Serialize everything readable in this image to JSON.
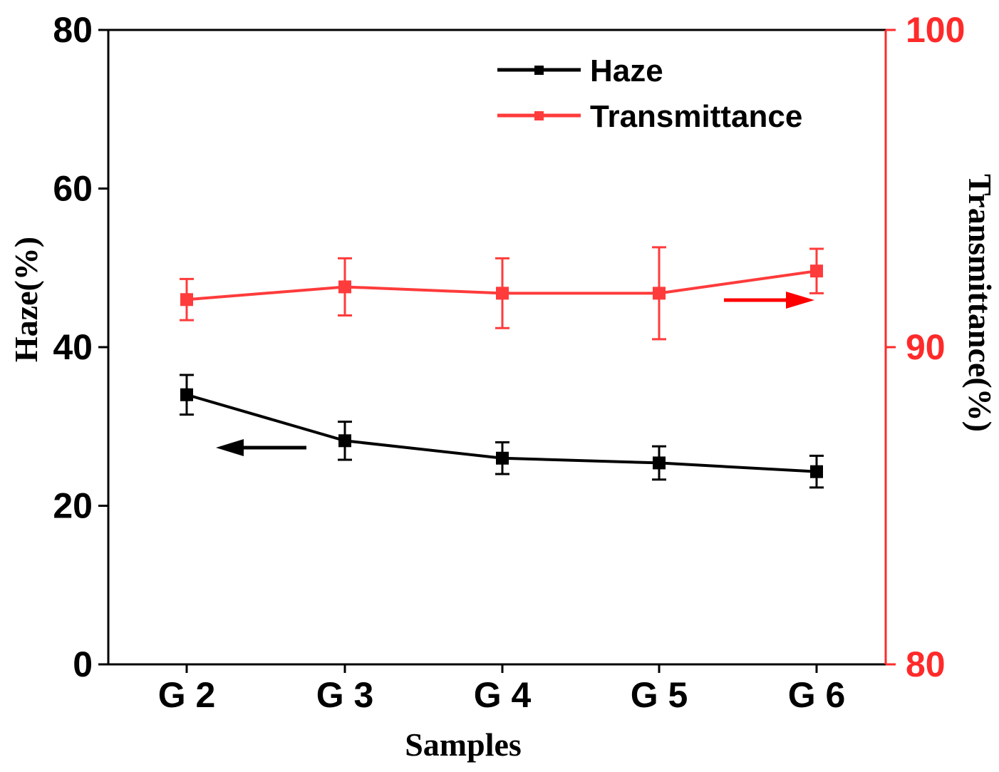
{
  "chart_data": {
    "type": "line",
    "categories": [
      "G 2",
      "G 3",
      "G 4",
      "G 5",
      "G 6"
    ],
    "xlabel": "Samples",
    "left_axis": {
      "label": "Haze(%)",
      "ylim": [
        0,
        80
      ],
      "ticks": [
        "0",
        "20",
        "40",
        "60",
        "80"
      ],
      "tick_values": [
        0,
        20,
        40,
        60,
        80
      ],
      "color": "#000000"
    },
    "right_axis": {
      "label": "Transmittance(%)",
      "ylim": [
        80,
        100
      ],
      "ticks": [
        "80",
        "90",
        "100"
      ],
      "tick_values": [
        80,
        90,
        100
      ],
      "color": "#ff2a2a"
    },
    "series": [
      {
        "name": "Haze",
        "axis": "left",
        "color": "#000000",
        "values": [
          34.0,
          28.2,
          26.0,
          25.4,
          24.3
        ],
        "errors": [
          2.5,
          2.4,
          2.0,
          2.1,
          2.0
        ]
      },
      {
        "name": "Transmittance",
        "axis": "right",
        "color": "#ff3b3b",
        "values": [
          91.5,
          91.9,
          91.7,
          91.7,
          92.4
        ],
        "errors": [
          0.65,
          0.9,
          1.1,
          1.45,
          0.7
        ]
      }
    ],
    "legend_position": "top-right",
    "annotations": [
      {
        "type": "arrow",
        "direction": "left",
        "series": "Haze",
        "color": "#000000"
      },
      {
        "type": "arrow",
        "direction": "right",
        "series": "Transmittance",
        "color": "#ff0000"
      }
    ]
  }
}
